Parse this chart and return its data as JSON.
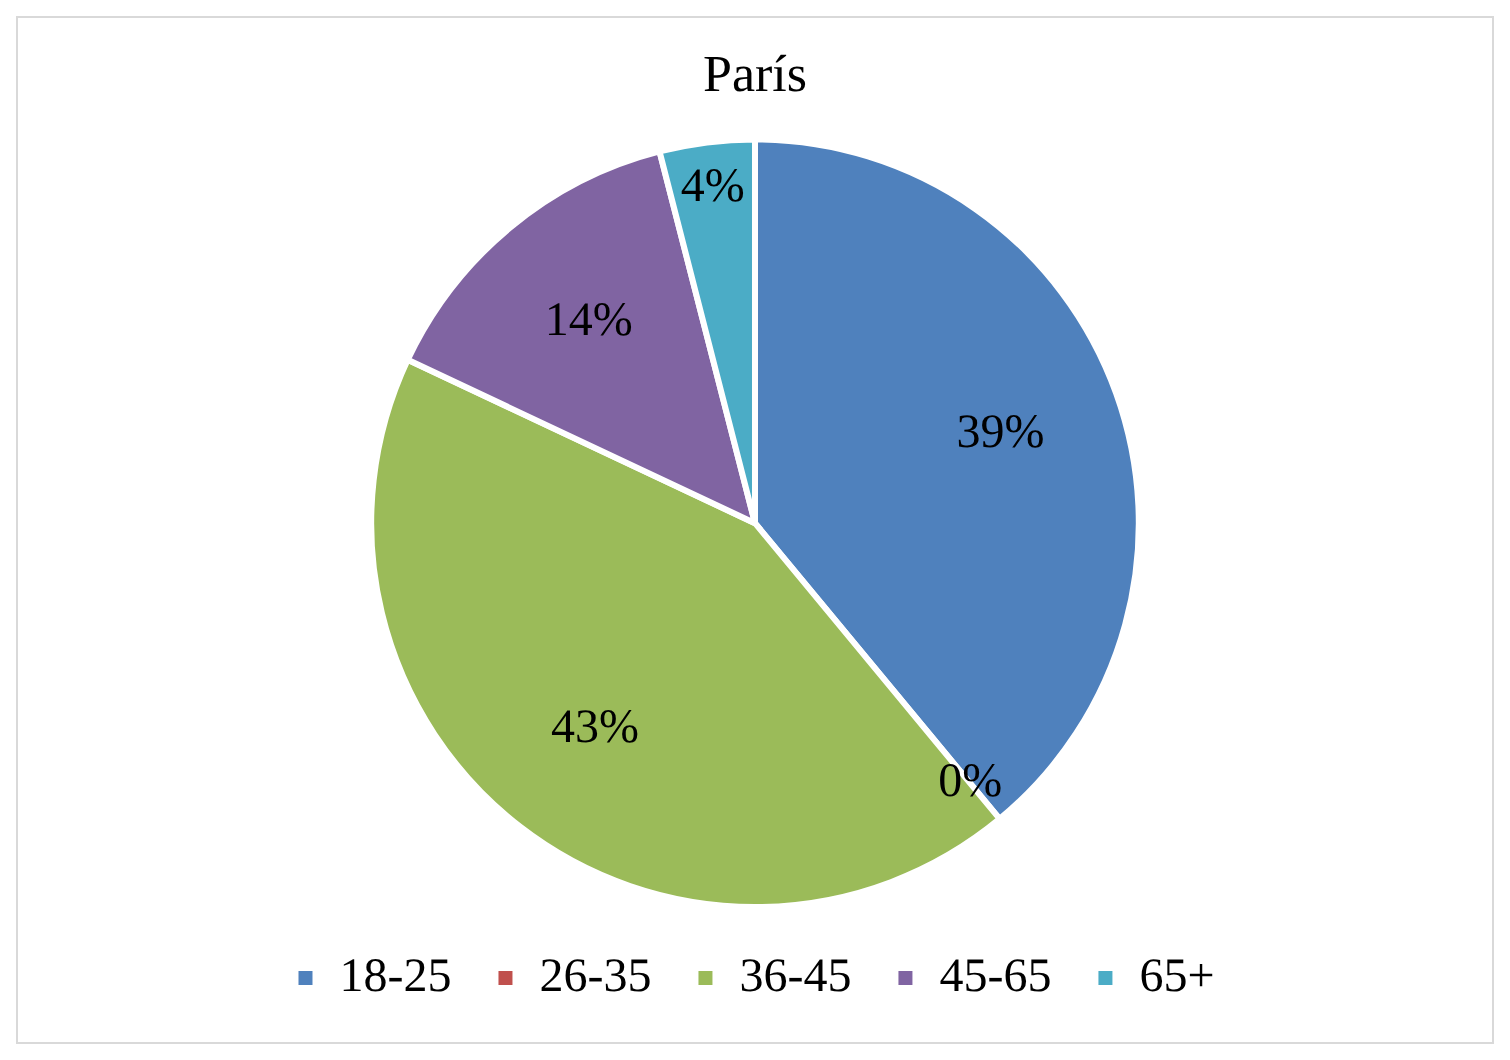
{
  "chart_data": {
    "type": "pie",
    "title": "París",
    "categories": [
      "18-25",
      "26-35",
      "36-45",
      "45-65",
      "65+"
    ],
    "values": [
      39,
      0,
      43,
      14,
      4
    ],
    "value_labels": [
      "39%",
      "0%",
      "43%",
      "14%",
      "4%"
    ],
    "colors": [
      "#4f81bd",
      "#c0504d",
      "#9bbb59",
      "#8064a2",
      "#4bacc6"
    ],
    "legend": "bottom"
  }
}
